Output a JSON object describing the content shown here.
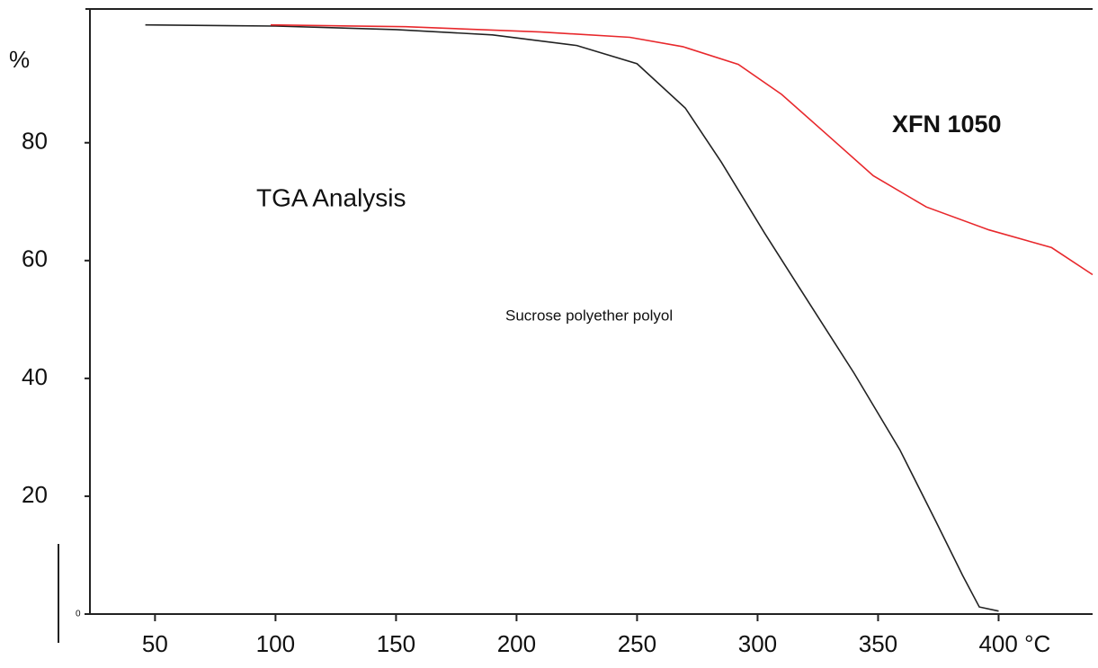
{
  "chart_data": {
    "type": "line",
    "title": "TGA Analysis",
    "y_label": "%",
    "xlim": [
      23,
      439
    ],
    "ylim": [
      0,
      102.7
    ],
    "xticks": [
      50,
      100,
      150,
      200,
      250,
      300,
      350,
      {
        "value": 400,
        "label": "400 °C"
      }
    ],
    "yticks": [
      0,
      20,
      40,
      60,
      80
    ],
    "series": [
      {
        "name": "Sucrose polyether polyol",
        "color": "#222222",
        "x": [
          46,
          100,
          150,
          190,
          225,
          250,
          270,
          285,
          303,
          322,
          340,
          359,
          374,
          385,
          392,
          400
        ],
        "values": [
          100,
          99.8,
          99.2,
          98.3,
          96.5,
          93.4,
          85.9,
          76.7,
          64.6,
          52.4,
          40.9,
          27.9,
          15.7,
          6.6,
          1.2,
          0.5
        ]
      },
      {
        "name": "XFN 1050",
        "color": "#e8282c",
        "x": [
          98,
          154,
          210,
          247,
          269,
          292,
          310,
          329,
          348,
          370,
          396,
          422,
          439
        ],
        "values": [
          100,
          99.7,
          98.8,
          97.9,
          96.3,
          93.3,
          88.2,
          81.3,
          74.4,
          69.1,
          65.2,
          62.2,
          57.6
        ]
      }
    ]
  }
}
